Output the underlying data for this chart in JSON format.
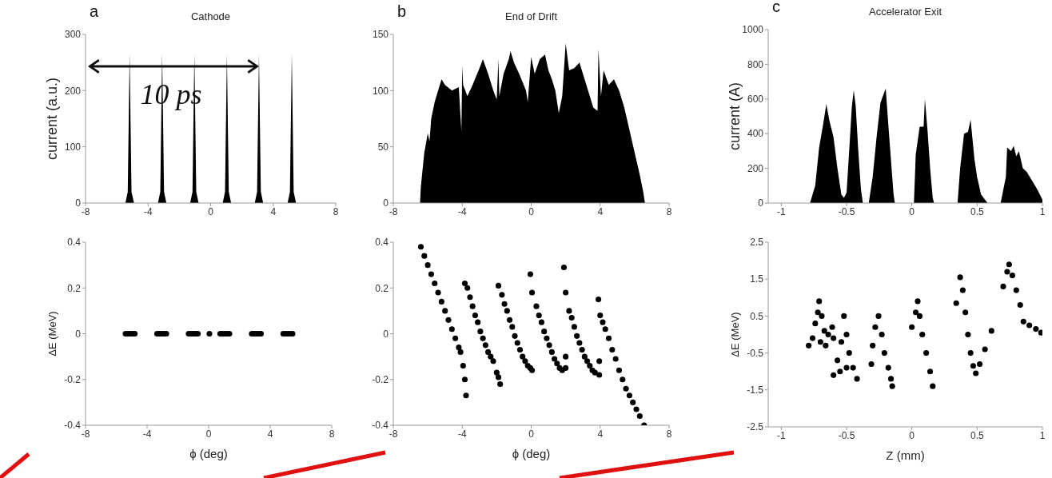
{
  "chart_data": [
    {
      "type": "area",
      "title": "Cathode",
      "ylabel": "current (a.u.)",
      "annotations": [
        "a",
        "10 ps"
      ],
      "color": "#000000",
      "x": [
        -5.45,
        -5.3,
        -5.18,
        -5.06,
        -4.9,
        -3.37,
        -3.22,
        -3.1,
        -2.98,
        -2.83,
        -1.31,
        -1.16,
        -1.04,
        -0.92,
        -0.77,
        0.77,
        0.92,
        1.04,
        1.16,
        1.31,
        2.82,
        2.97,
        3.09,
        3.21,
        3.36,
        4.92,
        5.07,
        5.19,
        5.31,
        5.46
      ],
      "values": [
        0,
        20,
        265,
        20,
        0,
        0,
        20,
        265,
        20,
        0,
        0,
        20,
        265,
        20,
        0,
        0,
        20,
        265,
        20,
        0,
        0,
        20,
        265,
        20,
        0,
        0,
        20,
        265,
        20,
        0
      ],
      "xlim": [
        -8,
        8
      ],
      "xticks": [
        -8,
        -4,
        0,
        4,
        8
      ],
      "ylim": [
        0,
        300
      ],
      "yticks": [
        0,
        100,
        200,
        300
      ],
      "grid": false,
      "legend": false
    },
    {
      "type": "area",
      "title": "End of Drift",
      "annotations": [
        "b"
      ],
      "color": "#000000",
      "x": [
        -6.45,
        -6.4,
        -6.2,
        -6.0,
        -5.9,
        -5.8,
        -5.6,
        -5.4,
        -5.2,
        -5.0,
        -4.6,
        -4.2,
        -4.05,
        -4.0,
        -3.95,
        -3.7,
        -3.4,
        -3.0,
        -2.8,
        -2.5,
        -2.2,
        -2.0,
        -1.9,
        -1.85,
        -1.6,
        -1.3,
        -1.2,
        -1.0,
        -0.7,
        -0.3,
        -0.2,
        0,
        0.2,
        0.5,
        0.8,
        1.0,
        1.2,
        1.4,
        1.6,
        1.8,
        2.0,
        2.2,
        2.5,
        2.8,
        3.0,
        3.3,
        3.6,
        3.85,
        3.9,
        4.05,
        4.2,
        4.5,
        4.8,
        5.1,
        5.4,
        5.7,
        6.0,
        6.3,
        6.5,
        6.6
      ],
      "values": [
        0,
        15,
        45,
        62,
        55,
        75,
        90,
        100,
        110,
        105,
        100,
        103,
        64,
        122,
        105,
        95,
        105,
        120,
        128,
        115,
        100,
        92,
        128,
        95,
        115,
        128,
        135,
        125,
        115,
        100,
        90,
        130,
        115,
        128,
        132,
        118,
        110,
        100,
        80,
        95,
        142,
        118,
        120,
        125,
        115,
        100,
        85,
        82,
        137,
        95,
        118,
        105,
        110,
        100,
        85,
        65,
        45,
        25,
        10,
        0
      ],
      "xlim": [
        -8,
        8
      ],
      "xticks": [
        -8,
        -4,
        0,
        4,
        8
      ],
      "ylim": [
        0,
        150
      ],
      "yticks": [
        0,
        50,
        100,
        150
      ],
      "grid": false,
      "legend": false
    },
    {
      "type": "area",
      "title": "Accelerator Exit",
      "ylabel": "current (A)",
      "annotations": [
        "c"
      ],
      "color": "#000000",
      "x": [
        -0.78,
        -0.74,
        -0.71,
        -0.68,
        -0.655,
        -0.63,
        -0.6,
        -0.57,
        -0.54,
        -0.52,
        -0.5,
        -0.48,
        -0.46,
        -0.445,
        -0.43,
        -0.41,
        -0.39,
        -0.375,
        -0.33,
        -0.3,
        -0.27,
        -0.24,
        -0.2,
        -0.18,
        -0.16,
        -0.14,
        -0.13,
        0.016,
        0.03,
        0.06,
        0.09,
        0.1,
        0.12,
        0.14,
        0.16,
        0.17,
        0.35,
        0.37,
        0.4,
        0.43,
        0.45,
        0.48,
        0.5,
        0.53,
        0.58,
        0.68,
        0.72,
        0.73,
        0.76,
        0.78,
        0.8,
        0.82,
        0.85,
        0.88,
        0.92,
        0.96,
        1.0
      ],
      "values": [
        0,
        100,
        320,
        450,
        570,
        470,
        380,
        200,
        50,
        30,
        60,
        300,
        550,
        650,
        560,
        300,
        80,
        0,
        0,
        150,
        380,
        580,
        660,
        450,
        250,
        50,
        0,
        0,
        280,
        440,
        440,
        600,
        420,
        200,
        30,
        0,
        0,
        200,
        400,
        410,
        480,
        250,
        150,
        50,
        0,
        0,
        150,
        320,
        300,
        330,
        270,
        300,
        200,
        180,
        130,
        80,
        20
      ],
      "xlim": [
        -1.1,
        1.0
      ],
      "xticks": [
        -1,
        -0.5,
        0,
        0.5,
        1
      ],
      "ylim": [
        0,
        1000
      ],
      "yticks": [
        0,
        200,
        400,
        600,
        800,
        1000
      ],
      "grid": false,
      "legend": false
    },
    {
      "type": "scatter",
      "xlabel": "ϕ (deg)",
      "ylabel": "ΔE (MeV)",
      "color": "#000000",
      "marker": "circle",
      "x": [
        -5.4,
        -5.25,
        -5.1,
        -4.95,
        -4.8,
        -3.35,
        -3.2,
        -3.05,
        -2.9,
        -2.75,
        -1.3,
        -1.15,
        -1.0,
        -0.85,
        -0.7,
        0.05,
        0.75,
        0.9,
        1.05,
        1.2,
        1.35,
        2.8,
        2.95,
        3.1,
        3.25,
        3.4,
        4.85,
        5.0,
        5.15,
        5.3,
        5.45
      ],
      "values": [
        0,
        0,
        0,
        0,
        0,
        0,
        0,
        0,
        0,
        0,
        0,
        0,
        0,
        0,
        0,
        0,
        0,
        0,
        0,
        0,
        0,
        0,
        0,
        0,
        0,
        0,
        0,
        0,
        0,
        0,
        0
      ],
      "xlim": [
        -8,
        8
      ],
      "xticks": [
        -8,
        -4,
        0,
        4,
        8
      ],
      "ylim": [
        -0.4,
        0.4
      ],
      "yticks": [
        -0.4,
        -0.2,
        0,
        0.2,
        0.4
      ],
      "grid": false,
      "legend": false
    },
    {
      "type": "scatter",
      "xlabel": "ϕ (deg)",
      "color": "#000000",
      "marker": "circle",
      "x": [
        -6.4,
        -6.2,
        -6.0,
        -5.8,
        -5.6,
        -5.4,
        -5.2,
        -5.0,
        -4.8,
        -4.6,
        -4.4,
        -4.2,
        -4.1,
        -3.95,
        -3.85,
        -3.78,
        -3.85,
        -3.7,
        -3.55,
        -3.4,
        -3.25,
        -3.1,
        -2.95,
        -2.8,
        -2.65,
        -2.5,
        -2.35,
        -2.2,
        -2.0,
        -1.9,
        -1.8,
        -1.9,
        -1.7,
        -1.55,
        -1.4,
        -1.25,
        -1.1,
        -0.95,
        -0.8,
        -0.65,
        -0.5,
        -0.35,
        -0.2,
        -0.05,
        0.05,
        -0.05,
        0.05,
        0.3,
        0.45,
        0.6,
        0.75,
        0.9,
        1.05,
        1.2,
        1.35,
        1.5,
        1.65,
        1.8,
        2.0,
        2.0,
        1.9,
        2.0,
        2.2,
        2.35,
        2.5,
        2.65,
        2.8,
        2.95,
        3.1,
        3.25,
        3.4,
        3.55,
        3.7,
        3.95,
        3.95,
        3.9,
        4.0,
        4.15,
        4.3,
        4.5,
        4.7,
        4.9,
        5.1,
        5.3,
        5.5,
        5.7,
        5.9,
        6.1,
        6.3,
        6.55
      ],
      "values": [
        0.38,
        0.34,
        0.3,
        0.26,
        0.22,
        0.18,
        0.14,
        0.1,
        0.06,
        0.02,
        -0.02,
        -0.06,
        -0.08,
        -0.14,
        -0.2,
        -0.27,
        0.22,
        0.2,
        0.16,
        0.12,
        0.08,
        0.05,
        0.01,
        -0.02,
        -0.05,
        -0.08,
        -0.1,
        -0.12,
        -0.17,
        -0.19,
        -0.22,
        0.21,
        0.17,
        0.13,
        0.1,
        0.06,
        0.03,
        -0.01,
        -0.04,
        -0.07,
        -0.1,
        -0.12,
        -0.14,
        -0.15,
        -0.16,
        0.26,
        0.18,
        0.12,
        0.08,
        0.05,
        0.01,
        -0.02,
        -0.05,
        -0.08,
        -0.11,
        -0.13,
        -0.15,
        -0.16,
        -0.1,
        -0.15,
        0.29,
        0.18,
        0.1,
        0.07,
        0.03,
        -0.01,
        -0.04,
        -0.07,
        -0.1,
        -0.12,
        -0.14,
        -0.16,
        -0.17,
        -0.18,
        -0.12,
        0.15,
        0.08,
        0.05,
        0.02,
        -0.02,
        -0.07,
        -0.11,
        -0.16,
        -0.2,
        -0.24,
        -0.27,
        -0.3,
        -0.33,
        -0.36,
        -0.4
      ],
      "xlim": [
        -8,
        8
      ],
      "xticks": [
        -8,
        -4,
        0,
        4,
        8
      ],
      "ylim": [
        -0.4,
        0.4
      ],
      "yticks": [
        -0.4,
        -0.2,
        0,
        0.2,
        0.4
      ],
      "grid": false,
      "legend": false
    },
    {
      "type": "scatter",
      "xlabel": "Z (mm)",
      "ylabel": "ΔE (MeV)",
      "color": "#000000",
      "marker": "circle",
      "x": [
        -0.79,
        -0.76,
        -0.74,
        -0.72,
        -0.71,
        -0.69,
        -0.67,
        -0.64,
        -0.61,
        -0.6,
        -0.66,
        -0.7,
        -0.6,
        -0.57,
        -0.54,
        -0.52,
        -0.5,
        -0.48,
        -0.45,
        -0.42,
        -0.5,
        -0.55,
        -0.31,
        -0.3,
        -0.28,
        -0.255,
        -0.23,
        -0.21,
        -0.18,
        -0.16,
        -0.15,
        0.0,
        0.03,
        0.045,
        0.06,
        0.08,
        0.11,
        0.14,
        0.16,
        0.34,
        0.37,
        0.39,
        0.41,
        0.43,
        0.45,
        0.47,
        0.49,
        0.52,
        0.56,
        0.61,
        0.7,
        0.73,
        0.745,
        0.77,
        0.8,
        0.83,
        0.855,
        0.9,
        0.95,
        0.99
      ],
      "values": [
        -0.3,
        -0.1,
        0.3,
        0.6,
        0.9,
        0.5,
        0.1,
        0.0,
        0.2,
        -0.1,
        -0.3,
        -0.2,
        -1.1,
        -0.7,
        -0.2,
        0.5,
        0.0,
        -0.5,
        -0.9,
        -1.2,
        -0.9,
        -1.0,
        -0.8,
        -0.3,
        0.2,
        0.5,
        0.0,
        -0.5,
        -0.9,
        -1.2,
        -1.4,
        0.2,
        0.6,
        0.9,
        0.5,
        0.0,
        -0.5,
        -1.0,
        -1.4,
        0.85,
        1.55,
        1.2,
        0.6,
        0.0,
        -0.5,
        -0.85,
        -1.05,
        -0.8,
        -0.4,
        0.1,
        1.3,
        1.7,
        1.9,
        1.6,
        1.2,
        0.8,
        0.35,
        0.25,
        0.15,
        0.05
      ],
      "xlim": [
        -1.1,
        1.0
      ],
      "xticks": [
        -1,
        -0.5,
        0,
        0.5,
        1
      ],
      "ylim": [
        -2.5,
        2.5
      ],
      "yticks": [
        -2.5,
        -1.5,
        -0.5,
        0.5,
        1.5,
        2.5
      ],
      "grid": false,
      "legend": false
    }
  ]
}
